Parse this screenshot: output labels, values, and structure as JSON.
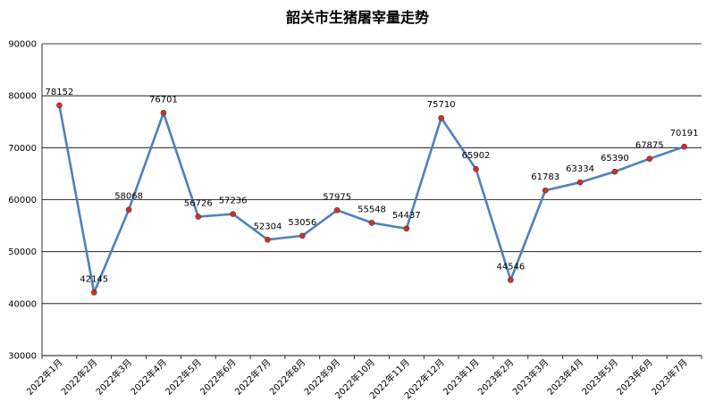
{
  "chart_data": {
    "type": "line",
    "title": "韶关市生猪屠宰量走势",
    "xlabel": "",
    "ylabel": "",
    "categories": [
      "2022年1月",
      "2022年2月",
      "2022年3月",
      "2022年4月",
      "2022年5月",
      "2022年6月",
      "2022年7月",
      "2022年8月",
      "2022年9月",
      "2022年10月",
      "2022年11月",
      "2022年12月",
      "2023年1月",
      "2023年2月",
      "2023年3月",
      "2023年4月",
      "2023年5月",
      "2023年6月",
      "2023年7月"
    ],
    "series": [
      {
        "values": [
          78152,
          42145,
          58068,
          76701,
          56726,
          57236,
          52304,
          53056,
          57975,
          55548,
          54437,
          75710,
          65902,
          44546,
          61783,
          63334,
          65390,
          67875,
          70191
        ],
        "color": "#4F81BD",
        "marker_color": "#C0392B"
      }
    ],
    "ylim": [
      30000,
      90000
    ],
    "yticks": [
      30000,
      40000,
      50000,
      60000,
      70000,
      80000,
      90000
    ],
    "grid": true,
    "legend": "none"
  }
}
